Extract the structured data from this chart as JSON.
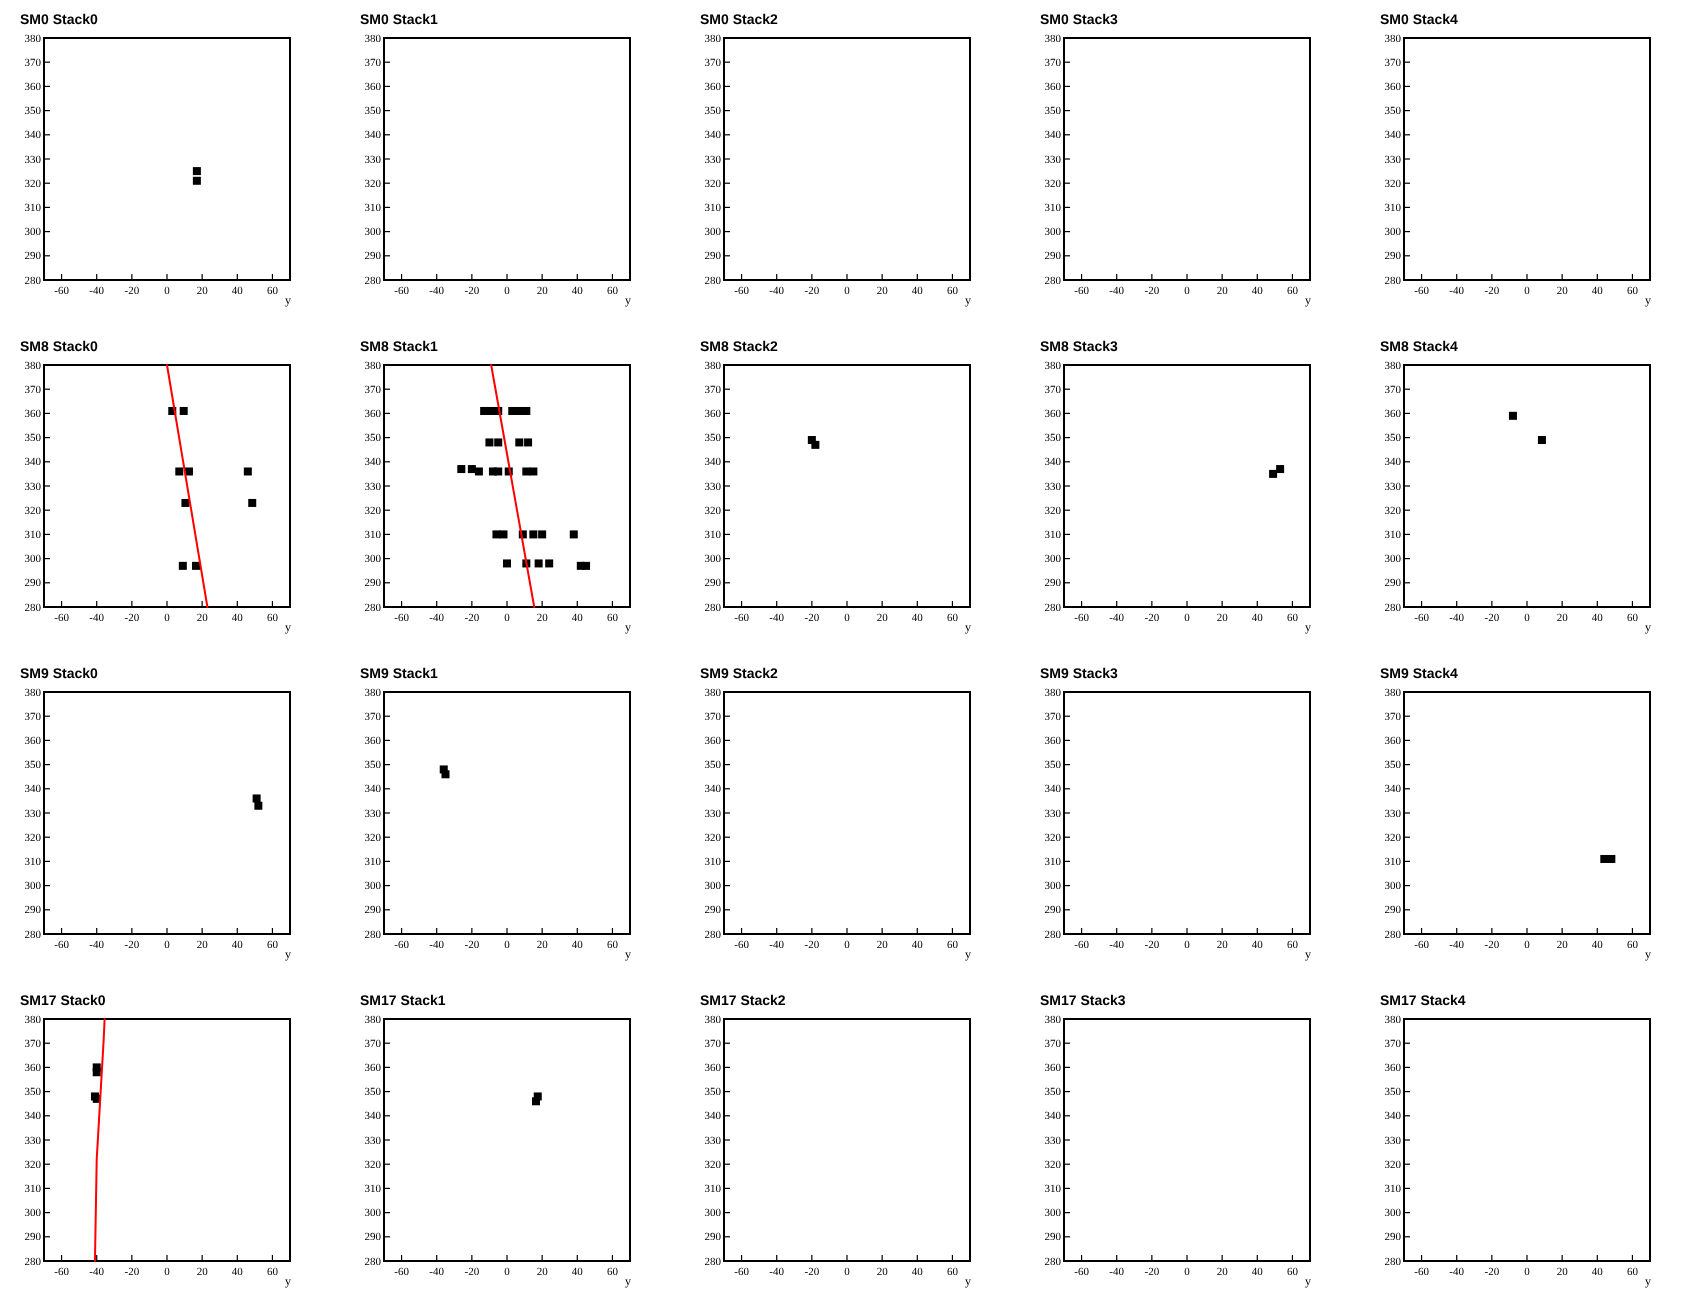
{
  "chart_data": [
    {
      "type": "scatter",
      "title": "SM0 Stack0",
      "xlabel": "y",
      "xlim": [
        -70,
        70
      ],
      "ylim": [
        280,
        380
      ],
      "xticks": [
        -60,
        -40,
        -20,
        0,
        20,
        40,
        60
      ],
      "yticks": [
        280,
        290,
        300,
        310,
        320,
        330,
        340,
        350,
        360,
        370,
        380
      ],
      "marker": "square",
      "series": [
        {
          "x": [
            17,
            17
          ],
          "values": [
            321,
            325
          ],
          "color": "#000000"
        }
      ]
    },
    {
      "type": "scatter",
      "title": "SM0 Stack1",
      "xlabel": "y",
      "xlim": [
        -70,
        70
      ],
      "ylim": [
        280,
        380
      ],
      "xticks": [
        -60,
        -40,
        -20,
        0,
        20,
        40,
        60
      ],
      "yticks": [
        280,
        290,
        300,
        310,
        320,
        330,
        340,
        350,
        360,
        370,
        380
      ]
    },
    {
      "type": "scatter",
      "title": "SM0 Stack2",
      "xlabel": "y",
      "xlim": [
        -70,
        70
      ],
      "ylim": [
        280,
        380
      ],
      "xticks": [
        -60,
        -40,
        -20,
        0,
        20,
        40,
        60
      ],
      "yticks": [
        280,
        290,
        300,
        310,
        320,
        330,
        340,
        350,
        360,
        370,
        380
      ]
    },
    {
      "type": "scatter",
      "title": "SM0 Stack3",
      "xlabel": "y",
      "xlim": [
        -70,
        70
      ],
      "ylim": [
        280,
        380
      ],
      "xticks": [
        -60,
        -40,
        -20,
        0,
        20,
        40,
        60
      ],
      "yticks": [
        280,
        290,
        300,
        310,
        320,
        330,
        340,
        350,
        360,
        370,
        380
      ]
    },
    {
      "type": "scatter",
      "title": "SM0 Stack4",
      "xlabel": "y",
      "xlim": [
        -70,
        70
      ],
      "ylim": [
        280,
        380
      ],
      "xticks": [
        -60,
        -40,
        -20,
        0,
        20,
        40,
        60
      ],
      "yticks": [
        280,
        290,
        300,
        310,
        320,
        330,
        340,
        350,
        360,
        370,
        380
      ]
    },
    {
      "type": "scatter",
      "title": "SM8 Stack0",
      "xlabel": "y",
      "xlim": [
        -70,
        70
      ],
      "ylim": [
        280,
        380
      ],
      "xticks": [
        -60,
        -40,
        -20,
        0,
        20,
        40,
        60
      ],
      "yticks": [
        280,
        290,
        300,
        310,
        320,
        330,
        340,
        350,
        360,
        370,
        380
      ],
      "marker": "square",
      "series": [
        {
          "x": [
            3,
            9.5,
            7,
            12.5,
            46,
            10.5,
            48.5,
            9,
            16.5
          ],
          "values": [
            361,
            361,
            336,
            336,
            336,
            323,
            323,
            297,
            297
          ],
          "color": "#000000"
        },
        {
          "type": "line",
          "marker": "none",
          "x": [
            0,
            23
          ],
          "values": [
            380,
            280
          ],
          "color": "#ff0000"
        }
      ]
    },
    {
      "type": "scatter",
      "title": "SM8 Stack1",
      "xlabel": "y",
      "xlim": [
        -70,
        70
      ],
      "ylim": [
        280,
        380
      ],
      "xticks": [
        -60,
        -40,
        -20,
        0,
        20,
        40,
        60
      ],
      "yticks": [
        280,
        290,
        300,
        310,
        320,
        330,
        340,
        350,
        360,
        370,
        380
      ],
      "marker": "square",
      "series": [
        {
          "x": [
            -13,
            -9,
            -5,
            3,
            7,
            11,
            -10,
            -5,
            7,
            12,
            -26,
            -20,
            -16,
            -8,
            -5,
            1,
            11,
            15,
            -6,
            -2,
            9,
            15,
            20,
            38,
            0,
            11,
            18,
            24,
            42,
            45
          ],
          "values": [
            361,
            361,
            361,
            361,
            361,
            361,
            348,
            348,
            348,
            348,
            337,
            337,
            336,
            336,
            336,
            336,
            336,
            336,
            310,
            310,
            310,
            310,
            310,
            310,
            298,
            298,
            298,
            298,
            297,
            297
          ],
          "color": "#000000"
        },
        {
          "type": "line",
          "marker": "none",
          "x": [
            -9,
            15.5
          ],
          "values": [
            380,
            280
          ],
          "color": "#ff0000"
        }
      ]
    },
    {
      "type": "scatter",
      "title": "SM8 Stack2",
      "xlabel": "y",
      "xlim": [
        -70,
        70
      ],
      "ylim": [
        280,
        380
      ],
      "xticks": [
        -60,
        -40,
        -20,
        0,
        20,
        40,
        60
      ],
      "yticks": [
        280,
        290,
        300,
        310,
        320,
        330,
        340,
        350,
        360,
        370,
        380
      ],
      "marker": "square",
      "series": [
        {
          "x": [
            -20,
            -18
          ],
          "values": [
            349,
            347
          ],
          "color": "#000000"
        }
      ]
    },
    {
      "type": "scatter",
      "title": "SM8 Stack3",
      "xlabel": "y",
      "xlim": [
        -70,
        70
      ],
      "ylim": [
        280,
        380
      ],
      "xticks": [
        -60,
        -40,
        -20,
        0,
        20,
        40,
        60
      ],
      "yticks": [
        280,
        290,
        300,
        310,
        320,
        330,
        340,
        350,
        360,
        370,
        380
      ],
      "marker": "square",
      "series": [
        {
          "x": [
            49,
            53
          ],
          "values": [
            335,
            337
          ],
          "color": "#000000"
        }
      ]
    },
    {
      "type": "scatter",
      "title": "SM8 Stack4",
      "xlabel": "y",
      "xlim": [
        -70,
        70
      ],
      "ylim": [
        280,
        380
      ],
      "xticks": [
        -60,
        -40,
        -20,
        0,
        20,
        40,
        60
      ],
      "yticks": [
        280,
        290,
        300,
        310,
        320,
        330,
        340,
        350,
        360,
        370,
        380
      ],
      "marker": "square",
      "series": [
        {
          "x": [
            -8,
            8.5
          ],
          "values": [
            359,
            349
          ],
          "color": "#000000"
        }
      ]
    },
    {
      "type": "scatter",
      "title": "SM9 Stack0",
      "xlabel": "y",
      "xlim": [
        -70,
        70
      ],
      "ylim": [
        280,
        380
      ],
      "xticks": [
        -60,
        -40,
        -20,
        0,
        20,
        40,
        60
      ],
      "yticks": [
        280,
        290,
        300,
        310,
        320,
        330,
        340,
        350,
        360,
        370,
        380
      ],
      "marker": "square",
      "series": [
        {
          "x": [
            51,
            52
          ],
          "values": [
            336,
            333
          ],
          "color": "#000000"
        }
      ]
    },
    {
      "type": "scatter",
      "title": "SM9 Stack1",
      "xlabel": "y",
      "xlim": [
        -70,
        70
      ],
      "ylim": [
        280,
        380
      ],
      "xticks": [
        -60,
        -40,
        -20,
        0,
        20,
        40,
        60
      ],
      "yticks": [
        280,
        290,
        300,
        310,
        320,
        330,
        340,
        350,
        360,
        370,
        380
      ],
      "marker": "square",
      "series": [
        {
          "x": [
            -36,
            -35
          ],
          "values": [
            348,
            346
          ],
          "color": "#000000"
        }
      ]
    },
    {
      "type": "scatter",
      "title": "SM9 Stack2",
      "xlabel": "y",
      "xlim": [
        -70,
        70
      ],
      "ylim": [
        280,
        380
      ],
      "xticks": [
        -60,
        -40,
        -20,
        0,
        20,
        40,
        60
      ],
      "yticks": [
        280,
        290,
        300,
        310,
        320,
        330,
        340,
        350,
        360,
        370,
        380
      ]
    },
    {
      "type": "scatter",
      "title": "SM9 Stack3",
      "xlabel": "y",
      "xlim": [
        -70,
        70
      ],
      "ylim": [
        280,
        380
      ],
      "xticks": [
        -60,
        -40,
        -20,
        0,
        20,
        40,
        60
      ],
      "yticks": [
        280,
        290,
        300,
        310,
        320,
        330,
        340,
        350,
        360,
        370,
        380
      ]
    },
    {
      "type": "scatter",
      "title": "SM9 Stack4",
      "xlabel": "y",
      "xlim": [
        -70,
        70
      ],
      "ylim": [
        280,
        380
      ],
      "xticks": [
        -60,
        -40,
        -20,
        0,
        20,
        40,
        60
      ],
      "yticks": [
        280,
        290,
        300,
        310,
        320,
        330,
        340,
        350,
        360,
        370,
        380
      ],
      "marker": "square",
      "series": [
        {
          "x": [
            44,
            48
          ],
          "values": [
            311,
            311
          ],
          "color": "#000000"
        }
      ]
    },
    {
      "type": "scatter",
      "title": "SM17 Stack0",
      "xlabel": "y",
      "xlim": [
        -70,
        70
      ],
      "ylim": [
        280,
        380
      ],
      "xticks": [
        -60,
        -40,
        -20,
        0,
        20,
        40,
        60
      ],
      "yticks": [
        280,
        290,
        300,
        310,
        320,
        330,
        340,
        350,
        360,
        370,
        380
      ],
      "marker": "square",
      "series": [
        {
          "x": [
            -40,
            -40,
            -41,
            -40
          ],
          "values": [
            360,
            358,
            348,
            347
          ],
          "color": "#000000"
        },
        {
          "type": "line",
          "marker": "none",
          "x": [
            -41,
            -40,
            -38,
            -36,
            -35.5
          ],
          "values": [
            280,
            322,
            347,
            372,
            380
          ],
          "color": "#ff0000"
        }
      ]
    },
    {
      "type": "scatter",
      "title": "SM17 Stack1",
      "xlabel": "y",
      "xlim": [
        -70,
        70
      ],
      "ylim": [
        280,
        380
      ],
      "xticks": [
        -60,
        -40,
        -20,
        0,
        20,
        40,
        60
      ],
      "yticks": [
        280,
        290,
        300,
        310,
        320,
        330,
        340,
        350,
        360,
        370,
        380
      ],
      "marker": "square",
      "series": [
        {
          "x": [
            16.5,
            17.5
          ],
          "values": [
            346,
            348
          ],
          "color": "#000000"
        }
      ]
    },
    {
      "type": "scatter",
      "title": "SM17 Stack2",
      "xlabel": "y",
      "xlim": [
        -70,
        70
      ],
      "ylim": [
        280,
        380
      ],
      "xticks": [
        -60,
        -40,
        -20,
        0,
        20,
        40,
        60
      ],
      "yticks": [
        280,
        290,
        300,
        310,
        320,
        330,
        340,
        350,
        360,
        370,
        380
      ]
    },
    {
      "type": "scatter",
      "title": "SM17 Stack3",
      "xlabel": "y",
      "xlim": [
        -70,
        70
      ],
      "ylim": [
        280,
        380
      ],
      "xticks": [
        -60,
        -40,
        -20,
        0,
        20,
        40,
        60
      ],
      "yticks": [
        280,
        290,
        300,
        310,
        320,
        330,
        340,
        350,
        360,
        370,
        380
      ]
    },
    {
      "type": "scatter",
      "title": "SM17 Stack4",
      "xlabel": "y",
      "xlim": [
        -70,
        70
      ],
      "ylim": [
        280,
        380
      ],
      "xticks": [
        -60,
        -40,
        -20,
        0,
        20,
        40,
        60
      ],
      "yticks": [
        280,
        290,
        300,
        310,
        320,
        330,
        340,
        350,
        360,
        370,
        380
      ]
    }
  ]
}
